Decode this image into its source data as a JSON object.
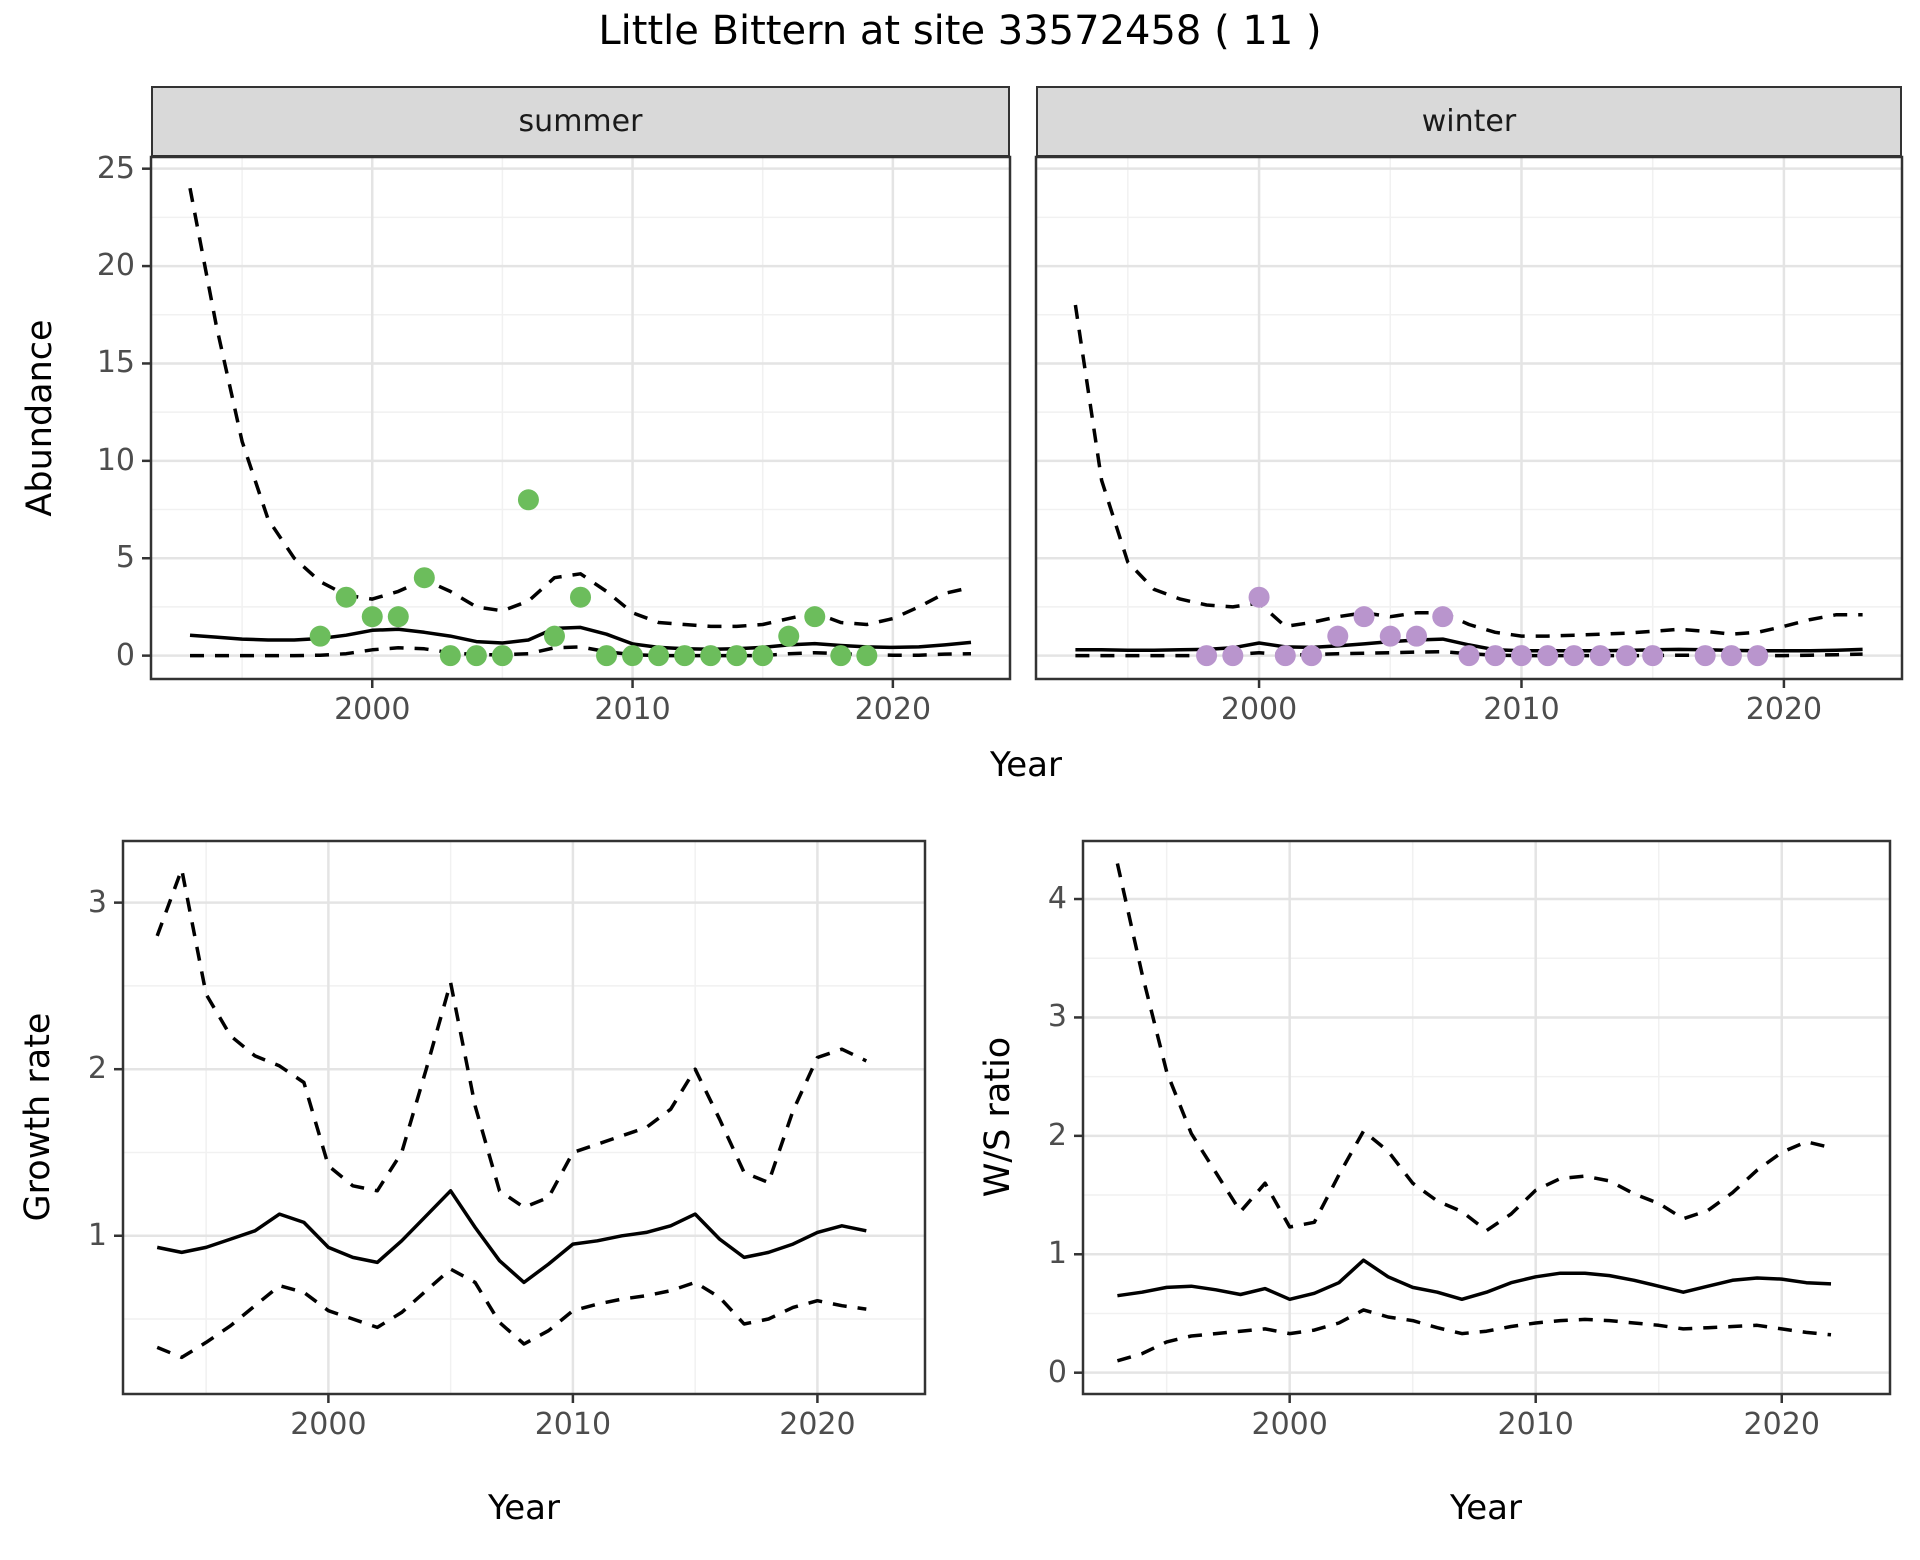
{
  "figure": {
    "title": "Little Bittern at site 33572458 ( 11 )",
    "shared_y_label_top": "Abundance",
    "shared_x_label_top": "Year",
    "colors": {
      "summer_point": "#6cbd5c",
      "winter_point": "#b995cd",
      "line": "#000000",
      "tick_text": "#4d4d4d",
      "strip_bg": "#d9d9d9",
      "strip_border": "#333333",
      "panel_border": "#333333",
      "grid_major": "#e4e4e4",
      "grid_minor": "#f1f1f1",
      "panel_bg": "#ffffff"
    }
  },
  "chart_data": [
    {
      "id": "abundance-summer",
      "type": "line",
      "facet_label": "summer",
      "ylabel": "Abundance",
      "xlabel": "Year",
      "x_range": [
        1991.5,
        2024.5
      ],
      "y_range": [
        -1.2,
        25.6
      ],
      "x_ticks_major": [
        2000,
        2010,
        2020
      ],
      "x_ticks_minor": [
        1995,
        2005,
        2015
      ],
      "y_ticks_major": [
        0,
        5,
        10,
        15,
        20,
        25
      ],
      "y_ticks_minor": [
        2.5,
        7.5,
        12.5,
        17.5,
        22.5
      ],
      "show_y_tick_labels": true,
      "start_year": 1993,
      "mean": [
        1.05,
        0.95,
        0.85,
        0.8,
        0.8,
        0.88,
        1.05,
        1.3,
        1.35,
        1.2,
        1.0,
        0.72,
        0.65,
        0.8,
        1.4,
        1.45,
        1.1,
        0.6,
        0.42,
        0.35,
        0.33,
        0.35,
        0.42,
        0.55,
        0.62,
        0.52,
        0.45,
        0.42,
        0.45,
        0.55,
        0.68
      ],
      "upper": [
        24,
        17,
        11,
        7,
        5,
        3.8,
        3.1,
        2.9,
        3.3,
        3.9,
        3.3,
        2.5,
        2.3,
        2.8,
        4.0,
        4.2,
        3.3,
        2.2,
        1.7,
        1.6,
        1.5,
        1.5,
        1.6,
        1.9,
        2.2,
        1.7,
        1.6,
        1.9,
        2.5,
        3.2,
        3.5
      ],
      "lower": [
        0,
        0,
        0,
        0,
        0,
        0.02,
        0.1,
        0.3,
        0.4,
        0.35,
        0.15,
        0.05,
        0.05,
        0.1,
        0.4,
        0.45,
        0.2,
        0.05,
        0,
        0,
        0,
        0,
        0,
        0.1,
        0.15,
        0.1,
        0.05,
        0.02,
        0.02,
        0.08,
        0.1
      ],
      "points": {
        "color_key": "summer_point",
        "years": [
          1998,
          1999,
          2000,
          2001,
          2002,
          2003,
          2004,
          2005,
          2006,
          2007,
          2008,
          2009,
          2010,
          2011,
          2012,
          2013,
          2014,
          2015,
          2016,
          2017,
          2018,
          2019
        ],
        "values": [
          1,
          3,
          2,
          2,
          4,
          0,
          0,
          0,
          8,
          1,
          3,
          0,
          0,
          0,
          0,
          0,
          0,
          0,
          1,
          2,
          0,
          0
        ]
      }
    },
    {
      "id": "abundance-winter",
      "type": "line",
      "facet_label": "winter",
      "ylabel": "Abundance",
      "xlabel": "Year",
      "x_range": [
        1991.5,
        2024.5
      ],
      "y_range": [
        -1.2,
        25.6
      ],
      "x_ticks_major": [
        2000,
        2010,
        2020
      ],
      "x_ticks_minor": [
        1995,
        2005,
        2015
      ],
      "y_ticks_major": [
        0,
        5,
        10,
        15,
        20,
        25
      ],
      "y_ticks_minor": [
        2.5,
        7.5,
        12.5,
        17.5,
        22.5
      ],
      "show_y_tick_labels": false,
      "start_year": 1993,
      "mean": [
        0.3,
        0.3,
        0.28,
        0.28,
        0.3,
        0.32,
        0.4,
        0.65,
        0.45,
        0.42,
        0.5,
        0.6,
        0.72,
        0.8,
        0.85,
        0.55,
        0.3,
        0.25,
        0.25,
        0.25,
        0.25,
        0.27,
        0.3,
        0.32,
        0.3,
        0.27,
        0.25,
        0.25,
        0.25,
        0.28,
        0.32
      ],
      "upper": [
        18,
        9,
        4.8,
        3.4,
        2.9,
        2.6,
        2.5,
        2.7,
        1.5,
        1.7,
        2.0,
        2.2,
        2.0,
        2.2,
        2.2,
        1.6,
        1.2,
        1.0,
        1.0,
        1.05,
        1.1,
        1.15,
        1.25,
        1.35,
        1.25,
        1.1,
        1.2,
        1.5,
        1.85,
        2.1,
        2.1
      ],
      "lower": [
        0,
        0,
        0,
        0,
        0,
        0,
        0.05,
        0.15,
        0.05,
        0.05,
        0.1,
        0.12,
        0.15,
        0.18,
        0.2,
        0.1,
        0.02,
        0,
        0,
        0,
        0,
        0,
        0,
        0.02,
        0.02,
        0,
        0,
        0,
        0.02,
        0.05,
        0.08
      ],
      "points": {
        "color_key": "winter_point",
        "years": [
          1998,
          1999,
          2000,
          2001,
          2002,
          2003,
          2004,
          2005,
          2006,
          2007,
          2008,
          2009,
          2010,
          2011,
          2012,
          2013,
          2014,
          2015,
          2017,
          2018,
          2019
        ],
        "values": [
          0,
          0,
          3,
          0,
          0,
          1,
          2,
          1,
          1,
          2,
          0,
          0,
          0,
          0,
          0,
          0,
          0,
          0,
          0,
          0,
          0
        ]
      }
    },
    {
      "id": "growth-rate",
      "type": "line",
      "facet_label": null,
      "ylabel": "Growth rate",
      "xlabel": "Year",
      "x_range": [
        1991.6,
        2024.4
      ],
      "y_range": [
        0.05,
        3.37
      ],
      "x_ticks_major": [
        2000,
        2010,
        2020
      ],
      "x_ticks_minor": [
        1995,
        2005,
        2015
      ],
      "y_ticks_major": [
        1,
        2,
        3
      ],
      "y_ticks_minor": [
        0.5,
        1.5,
        2.5
      ],
      "show_y_tick_labels": true,
      "start_year": 1993,
      "mean": [
        0.93,
        0.9,
        0.93,
        0.98,
        1.03,
        1.13,
        1.08,
        0.93,
        0.87,
        0.84,
        0.97,
        1.12,
        1.27,
        1.05,
        0.85,
        0.72,
        0.83,
        0.95,
        0.97,
        1.0,
        1.02,
        1.06,
        1.13,
        0.98,
        0.87,
        0.9,
        0.95,
        1.02,
        1.06,
        1.03
      ],
      "upper": [
        2.8,
        3.2,
        2.45,
        2.2,
        2.08,
        2.02,
        1.92,
        1.42,
        1.3,
        1.27,
        1.5,
        2.0,
        2.52,
        1.78,
        1.27,
        1.17,
        1.23,
        1.5,
        1.55,
        1.6,
        1.65,
        1.76,
        2.0,
        1.7,
        1.38,
        1.32,
        1.75,
        2.07,
        2.12,
        2.05
      ],
      "lower": [
        0.33,
        0.27,
        0.36,
        0.46,
        0.58,
        0.7,
        0.66,
        0.55,
        0.5,
        0.45,
        0.54,
        0.67,
        0.8,
        0.72,
        0.48,
        0.35,
        0.43,
        0.55,
        0.59,
        0.62,
        0.64,
        0.67,
        0.72,
        0.63,
        0.47,
        0.5,
        0.57,
        0.61,
        0.58,
        0.56
      ],
      "points": null
    },
    {
      "id": "ws-ratio",
      "type": "line",
      "facet_label": null,
      "ylabel": "W/S ratio",
      "xlabel": "Year",
      "x_range": [
        1991.6,
        2024.4
      ],
      "y_range": [
        -0.18,
        4.49
      ],
      "x_ticks_major": [
        2000,
        2010,
        2020
      ],
      "x_ticks_minor": [
        1995,
        2005,
        2015
      ],
      "y_ticks_major": [
        0,
        1,
        2,
        3,
        4
      ],
      "y_ticks_minor": [
        0.5,
        1.5,
        2.5,
        3.5
      ],
      "show_y_tick_labels": true,
      "start_year": 1993,
      "mean": [
        0.65,
        0.68,
        0.72,
        0.73,
        0.7,
        0.66,
        0.71,
        0.62,
        0.67,
        0.76,
        0.95,
        0.81,
        0.72,
        0.68,
        0.62,
        0.68,
        0.76,
        0.81,
        0.84,
        0.84,
        0.82,
        0.78,
        0.73,
        0.68,
        0.73,
        0.78,
        0.8,
        0.79,
        0.76,
        0.75
      ],
      "upper": [
        4.3,
        3.37,
        2.54,
        2.02,
        1.69,
        1.36,
        1.6,
        1.23,
        1.27,
        1.67,
        2.04,
        1.87,
        1.6,
        1.45,
        1.36,
        1.2,
        1.34,
        1.54,
        1.64,
        1.66,
        1.62,
        1.51,
        1.43,
        1.3,
        1.37,
        1.52,
        1.71,
        1.86,
        1.95,
        1.9
      ],
      "lower": [
        0.1,
        0.16,
        0.26,
        0.31,
        0.33,
        0.35,
        0.37,
        0.33,
        0.36,
        0.42,
        0.53,
        0.47,
        0.44,
        0.38,
        0.33,
        0.35,
        0.39,
        0.42,
        0.44,
        0.45,
        0.44,
        0.42,
        0.4,
        0.37,
        0.38,
        0.39,
        0.4,
        0.37,
        0.34,
        0.32
      ],
      "points": null
    }
  ]
}
